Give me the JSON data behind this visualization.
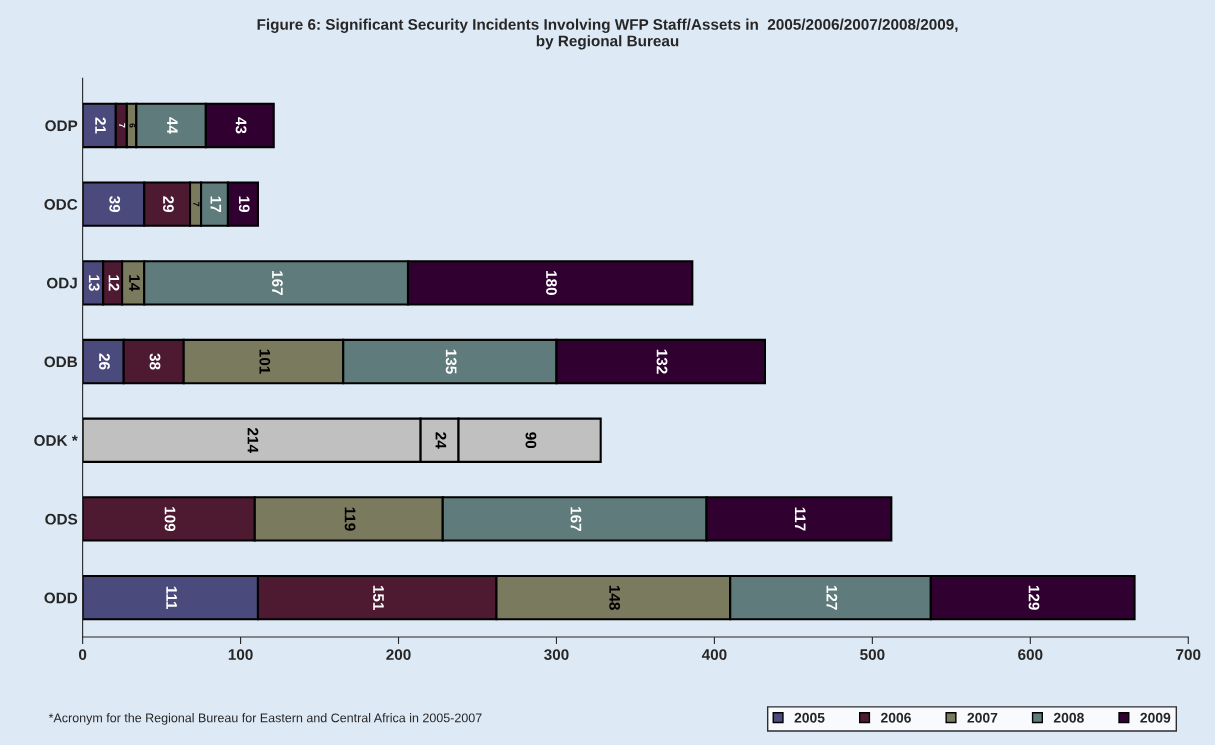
{
  "chart_data": {
    "type": "bar",
    "orientation": "horizontal",
    "stacked": true,
    "title": "Figure 6: Significant Security Incidents Involving WFP Staff/Assets in  2005/2006/2007/2008/2009,\nby Regional Bureau",
    "categories": [
      "ODP",
      "ODC",
      "ODJ",
      "ODB",
      "ODK *",
      "ODS",
      "ODD"
    ],
    "series": [
      {
        "name": "2005",
        "color": "#4b4a7c",
        "colors": [
          "#4b4a7c",
          "#4b4a7c",
          "#4b4a7c",
          "#4b4a7c",
          "#c0c0c0",
          "#4b4a7c",
          "#4b4a7c"
        ],
        "values": [
          21,
          39,
          13,
          26,
          214,
          null,
          111
        ]
      },
      {
        "name": "2006",
        "color": "#4d1a32",
        "colors": [
          "#4d1a32",
          "#4d1a32",
          "#4d1a32",
          "#4d1a32",
          "#c0c0c0",
          "#4d1a32",
          "#4d1a32"
        ],
        "values": [
          7,
          29,
          12,
          38,
          24,
          109,
          151
        ]
      },
      {
        "name": "2007",
        "color": "#7a7a5e",
        "colors": [
          "#7a7a5e",
          "#7a7a5e",
          "#7a7a5e",
          "#7a7a5e",
          "#c0c0c0",
          "#7a7a5e",
          "#7a7a5e"
        ],
        "values": [
          6,
          7,
          14,
          101,
          90,
          119,
          148
        ]
      },
      {
        "name": "2008",
        "color": "#5f7b7b",
        "values": [
          44,
          17,
          167,
          135,
          null,
          167,
          127
        ]
      },
      {
        "name": "2009",
        "color": "#300030",
        "values": [
          43,
          19,
          180,
          132,
          null,
          117,
          129
        ]
      }
    ],
    "xlim": [
      0,
      700
    ],
    "xticks": [
      0,
      100,
      200,
      300,
      400,
      500,
      600,
      700
    ],
    "data_labels": true,
    "legend": "bottom right",
    "grid": false,
    "annotations": [
      "*Acronym for the Regional Bureau for Eastern and Central Africa in 2005-2007"
    ]
  }
}
